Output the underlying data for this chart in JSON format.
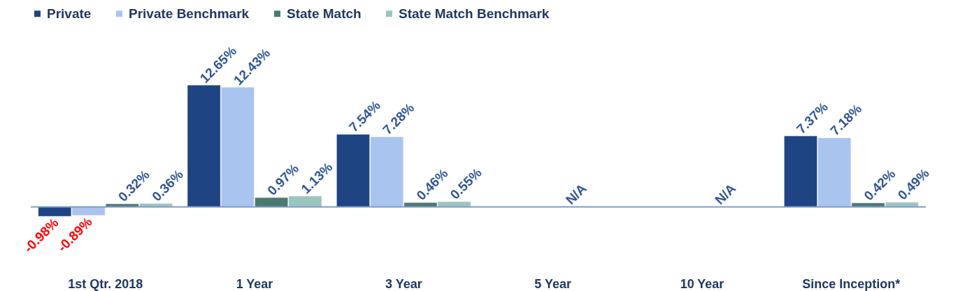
{
  "chart_data": {
    "type": "bar",
    "categories": [
      "1st Qtr. 2018",
      "1 Year",
      "3 Year",
      "5 Year",
      "10 Year",
      "Since Inception*"
    ],
    "series": [
      {
        "name": "Private",
        "color": "#1f4484",
        "values": [
          -0.98,
          12.65,
          7.54,
          null,
          null,
          7.37
        ],
        "value_labels": [
          "-0.98%",
          "12.65%",
          "7.54%",
          null,
          null,
          "7.37%"
        ]
      },
      {
        "name": "Private Benchmark",
        "color": "#a9c4ef",
        "values": [
          -0.89,
          12.43,
          7.28,
          null,
          null,
          7.18
        ],
        "value_labels": [
          "-0.89%",
          "12.43%",
          "7.28%",
          null,
          null,
          "7.18%"
        ]
      },
      {
        "name": "State Match",
        "color": "#4d7a70",
        "values": [
          0.32,
          0.97,
          0.46,
          null,
          null,
          0.42
        ],
        "value_labels": [
          "0.32%",
          "0.97%",
          "0.46%",
          "N/A",
          "N/A",
          "0.42%"
        ]
      },
      {
        "name": "State Match Benchmark",
        "color": "#9cc5bf",
        "values": [
          0.36,
          1.13,
          0.55,
          null,
          null,
          0.49
        ],
        "value_labels": [
          "0.36%",
          "1.13%",
          "0.55%",
          null,
          null,
          "0.49%"
        ]
      }
    ],
    "ref_lines": [
      {
        "axis": "y",
        "value": 0,
        "color": "#7f9cc9"
      }
    ],
    "legend": "top left"
  }
}
